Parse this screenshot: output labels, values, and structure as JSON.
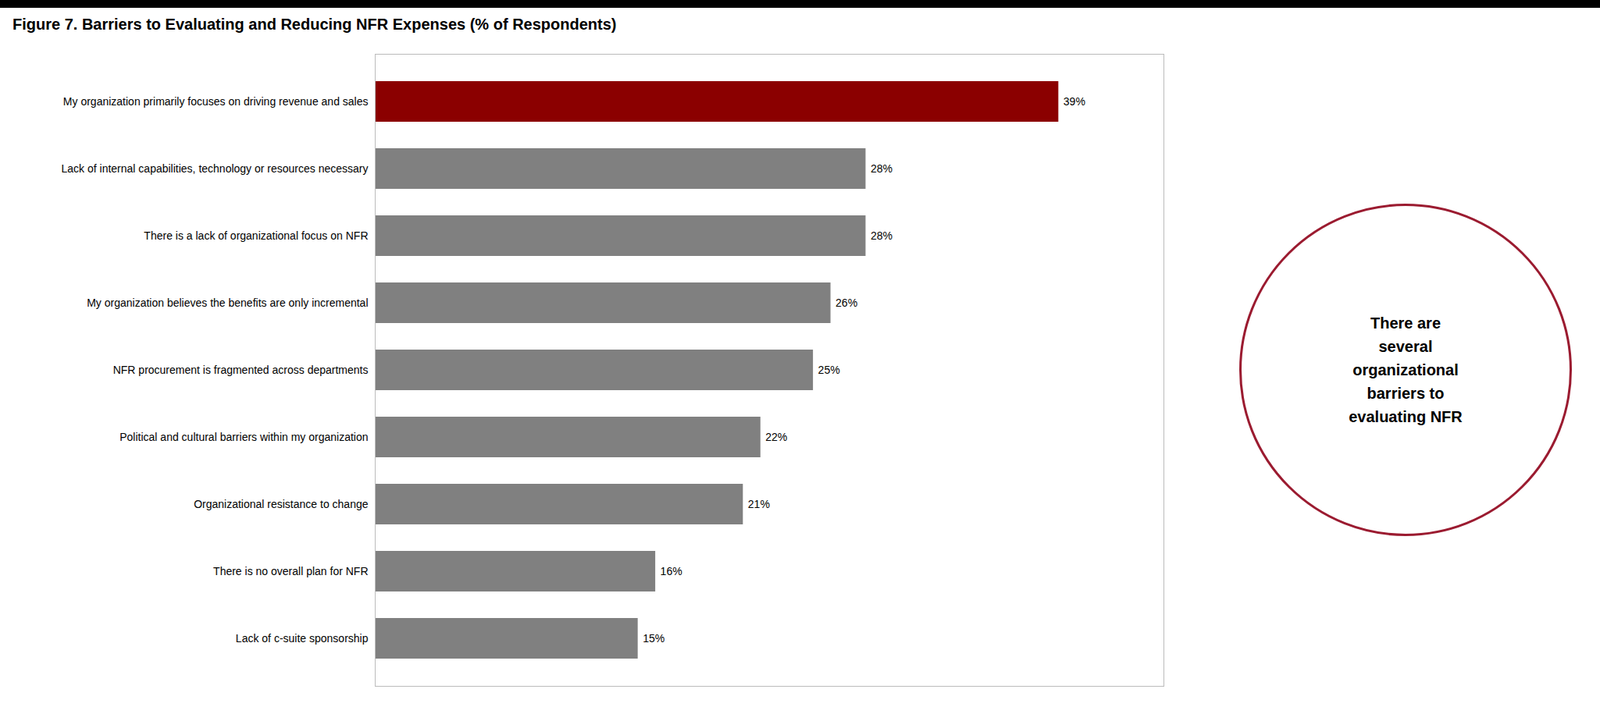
{
  "chart_data": {
    "type": "bar",
    "orientation": "horizontal",
    "title": "Figure 7. Barriers to Evaluating and Reducing NFR Expenses (% of Respondents)",
    "categories": [
      "Lack of c-suite sponsorship",
      "There is no overall plan for NFR",
      "Organizational resistance to change",
      "Political and cultural barriers within my organization",
      "NFR procurement is fragmented across departments",
      "My organization believes the benefits are only incremental",
      "There is a lack of organizational focus on NFR",
      "Lack of internal capabilities, technology or resources necessary",
      "My organization primarily focuses on driving revenue and sales"
    ],
    "values": [
      15,
      16,
      21,
      22,
      25,
      26,
      28,
      28,
      39
    ],
    "value_labels": [
      "15%",
      "16%",
      "21%",
      "22%",
      "25%",
      "26%",
      "28%",
      "28%",
      "39%"
    ],
    "colors": [
      "#808080",
      "#808080",
      "#808080",
      "#808080",
      "#808080",
      "#808080",
      "#808080",
      "#808080",
      "#8B0000"
    ],
    "xlim": [
      0,
      45
    ],
    "data_labels": true,
    "tick_labels": "y",
    "grid": false,
    "annotations": [
      {
        "text": "There are\nseveral\norganizational\nbarriers to\nevaluating NFR",
        "color": "#9B1B30"
      }
    ]
  }
}
